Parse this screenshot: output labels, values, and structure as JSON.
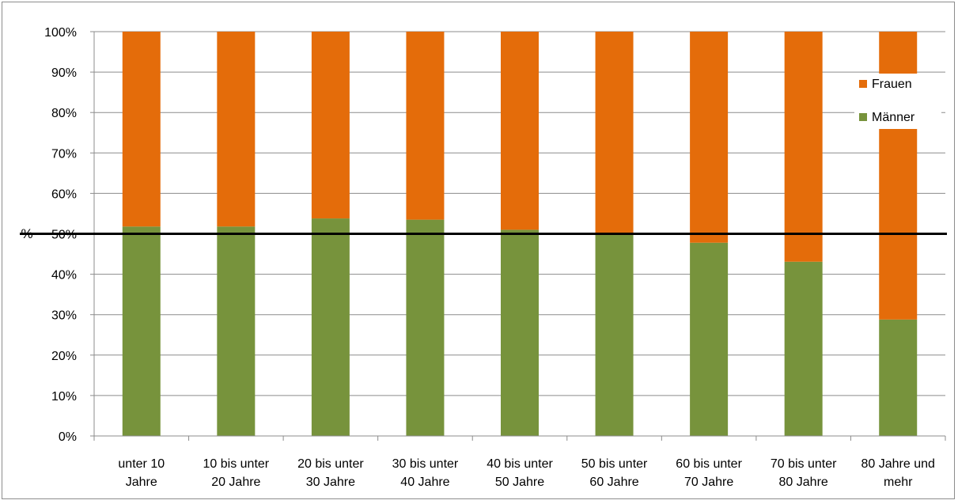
{
  "chart_data": {
    "type": "bar",
    "stacked": true,
    "percent_stacked": true,
    "categories": [
      [
        "unter 10",
        "Jahre"
      ],
      [
        "10 bis unter",
        "20 Jahre"
      ],
      [
        "20 bis unter",
        "30 Jahre"
      ],
      [
        "30 bis unter",
        "40 Jahre"
      ],
      [
        "40 bis unter",
        "50 Jahre"
      ],
      [
        "50 bis unter",
        "60 Jahre"
      ],
      [
        "60 bis unter",
        "70 Jahre"
      ],
      [
        "70 bis unter",
        "80 Jahre"
      ],
      [
        "80 Jahre und",
        "mehr"
      ]
    ],
    "series": [
      {
        "name": "Männer",
        "color": "#77933c",
        "values": [
          51.8,
          51.8,
          53.8,
          53.5,
          51.0,
          50.1,
          47.8,
          43.1,
          28.8
        ]
      },
      {
        "name": "Frauen",
        "color": "#e46c0a",
        "values": [
          48.2,
          48.2,
          46.2,
          46.5,
          49.0,
          49.9,
          52.2,
          56.9,
          71.2
        ]
      }
    ],
    "ylabel": "%",
    "ylim": [
      0,
      100
    ],
    "yticks": [
      "0%",
      "10%",
      "20%",
      "30%",
      "40%",
      "50%",
      "60%",
      "70%",
      "80%",
      "90%",
      "100%"
    ],
    "reference_line": 50,
    "grid": true,
    "legend_position": "right",
    "legend_order": [
      "Frauen",
      "Männer"
    ]
  }
}
